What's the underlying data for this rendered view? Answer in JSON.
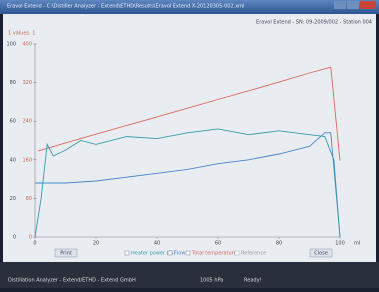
{
  "window": {
    "title": "Eravol Extend - C:\\Distiller Analyzer - Extend\\ETHD\\Results\\Eravol Extend X-20120305-002.xml",
    "header_right": "Eravol Extend - SN: 09-2009/002 - Station 004",
    "header_left": "1 values: 1"
  },
  "chart": {
    "type": "line",
    "x_unit": "ml",
    "xlim": [
      0,
      100
    ],
    "xticks": [
      0,
      20,
      40,
      60,
      80,
      100
    ],
    "ylim": [
      0,
      100
    ],
    "yticks": [
      0,
      20,
      40,
      60,
      80,
      100
    ],
    "y2lim": [
      0,
      400
    ],
    "y2ticks": [
      0,
      80,
      160,
      240,
      320,
      400
    ],
    "series": [
      {
        "name": "Total temperature",
        "color": "#d9695f",
        "axis": "y2",
        "x": [
          1,
          10,
          20,
          30,
          40,
          50,
          60,
          70,
          80,
          90,
          97,
          100
        ],
        "values": [
          178,
          195,
          213,
          231,
          249,
          267,
          285,
          303,
          321,
          340,
          352,
          158
        ]
      },
      {
        "name": "Flow",
        "color": "#4a86c8",
        "x": [
          0,
          10,
          20,
          30,
          40,
          50,
          60,
          70,
          80,
          90,
          95,
          97,
          100
        ],
        "values": [
          28,
          28,
          29,
          31,
          33,
          35,
          38,
          40,
          43,
          47,
          54,
          54,
          0
        ]
      },
      {
        "name": "Heater power (%)",
        "color": "#3a9aa8",
        "x": [
          0,
          2,
          4,
          6,
          10,
          15,
          20,
          30,
          40,
          50,
          60,
          70,
          80,
          90,
          95,
          98,
          100
        ],
        "values": [
          0,
          20,
          48,
          42,
          45,
          50,
          48,
          52,
          51,
          54,
          56,
          53,
          55,
          53,
          52,
          40,
          0
        ]
      }
    ],
    "extra_legend": "Reference"
  },
  "buttons": {
    "print": "Print",
    "close": "Close"
  },
  "status": {
    "left": "Distillation Analyzer - Extend/ETHD - Extend GmbH",
    "pressure": "1005 hPa",
    "state": "Ready!"
  }
}
